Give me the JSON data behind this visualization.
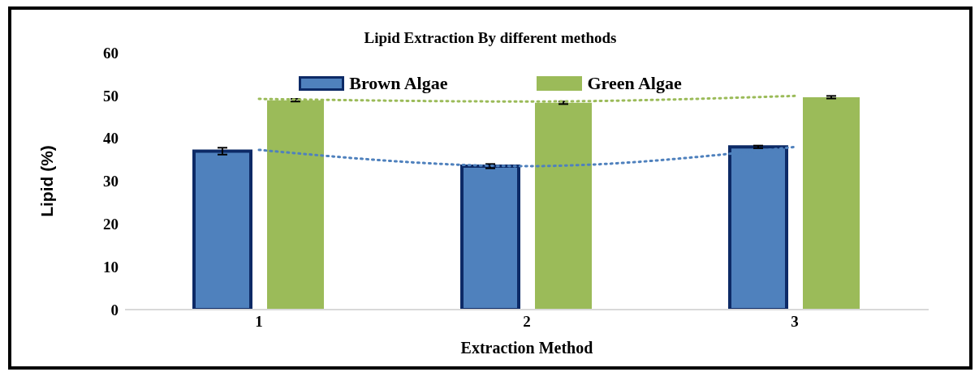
{
  "chart_data": {
    "type": "bar",
    "title": "Lipid Extraction By different methods",
    "xlabel": "Extraction Method",
    "ylabel": "Lipid (%)",
    "categories": [
      "1",
      "2",
      "3"
    ],
    "series": [
      {
        "name": "Brown Algae",
        "color": "#4f81bd",
        "values": [
          37.0,
          33.5,
          38.0
        ],
        "errors": [
          0.8,
          0.5,
          0.3
        ]
      },
      {
        "name": "Green Algae",
        "color": "#9bbb59",
        "values": [
          48.9,
          48.3,
          49.6
        ],
        "errors": [
          0.3,
          0.3,
          0.3
        ]
      },
      {
        "type": "line",
        "color": "#4f81bd",
        "x": [
          "1",
          "2",
          "3"
        ],
        "values": [
          37.3,
          33.5,
          38.0
        ],
        "line_style": "dotted"
      },
      {
        "type": "line",
        "color": "#9bbb59",
        "x": [
          "1",
          "2",
          "3"
        ],
        "values": [
          49.2,
          48.6,
          49.9
        ],
        "line_style": "dotted"
      }
    ],
    "ylim": [
      0,
      60
    ],
    "yticks": [
      0,
      10,
      20,
      30,
      40,
      50,
      60
    ],
    "grid": false,
    "legend": "top"
  }
}
